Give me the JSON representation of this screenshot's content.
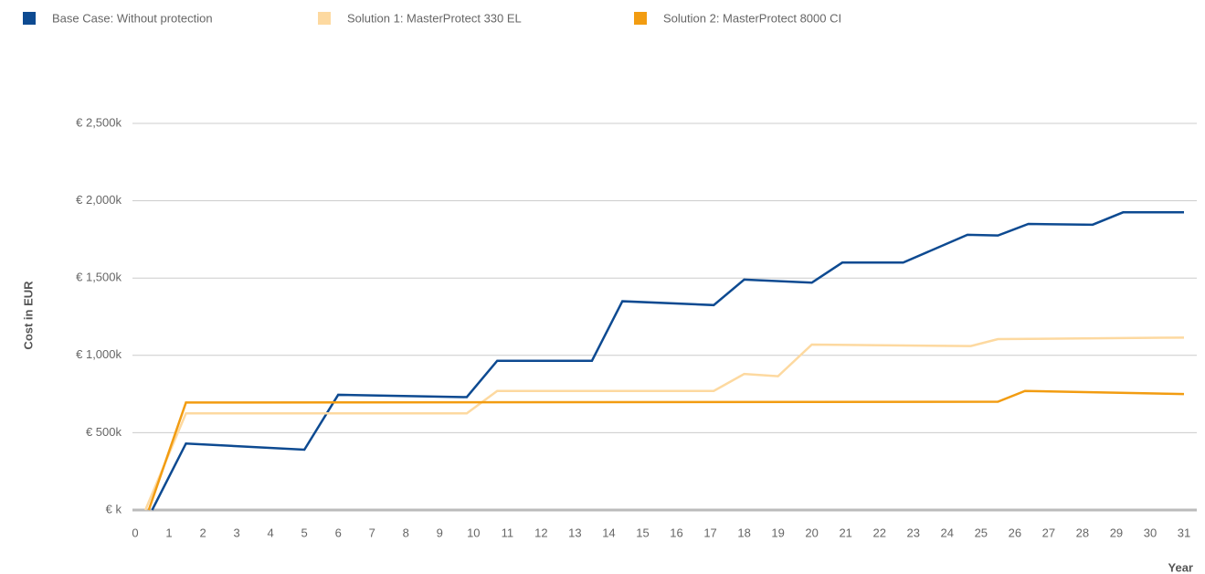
{
  "chart_data": {
    "type": "line",
    "y_label": "Cost in EUR",
    "x_label": "Year",
    "xlim": [
      0,
      31
    ],
    "xticks": [
      0,
      1,
      2,
      3,
      4,
      5,
      6,
      7,
      8,
      9,
      10,
      11,
      12,
      13,
      14,
      15,
      16,
      17,
      18,
      19,
      20,
      21,
      22,
      23,
      24,
      25,
      26,
      27,
      28,
      29,
      30,
      31
    ],
    "ylim": [
      0,
      2500
    ],
    "yticks": [
      {
        "value": 0,
        "label": "€ k"
      },
      {
        "value": 500,
        "label": "€ 500k"
      },
      {
        "value": 1000,
        "label": "€ 1,000k"
      },
      {
        "value": 1500,
        "label": "€ 1,500k"
      },
      {
        "value": 2000,
        "label": "€ 2,000k"
      },
      {
        "value": 2500,
        "label": "€ 2,500k"
      }
    ],
    "grid": true,
    "legend": "top-left",
    "series": [
      {
        "name": "Base Case: Without protection",
        "color": "#0d4a91",
        "x": [
          0.5,
          1.5,
          5,
          6,
          9.8,
          10.7,
          13.5,
          14.4,
          17.1,
          18,
          20,
          20.9,
          22.7,
          24.6,
          25.5,
          26.4,
          28.3,
          29.2,
          31
        ],
        "values": [
          0,
          430,
          390,
          745,
          730,
          965,
          965,
          1350,
          1325,
          1490,
          1470,
          1600,
          1600,
          1780,
          1775,
          1850,
          1845,
          1925,
          1925
        ]
      },
      {
        "name": "Solution 1: MasterProtect 330 EL",
        "color": "#fdd9a0",
        "x": [
          0.3,
          1.5,
          9.8,
          10.7,
          17.1,
          18,
          19,
          20,
          24.7,
          25.5,
          31
        ],
        "values": [
          0,
          625,
          625,
          770,
          770,
          880,
          865,
          1070,
          1060,
          1105,
          1115
        ]
      },
      {
        "name": "Solution 2: MasterProtect 8000 CI",
        "color": "#f29c11",
        "x": [
          0.4,
          1.5,
          25.5,
          26.3,
          31
        ],
        "values": [
          0,
          695,
          700,
          770,
          750
        ]
      }
    ]
  }
}
